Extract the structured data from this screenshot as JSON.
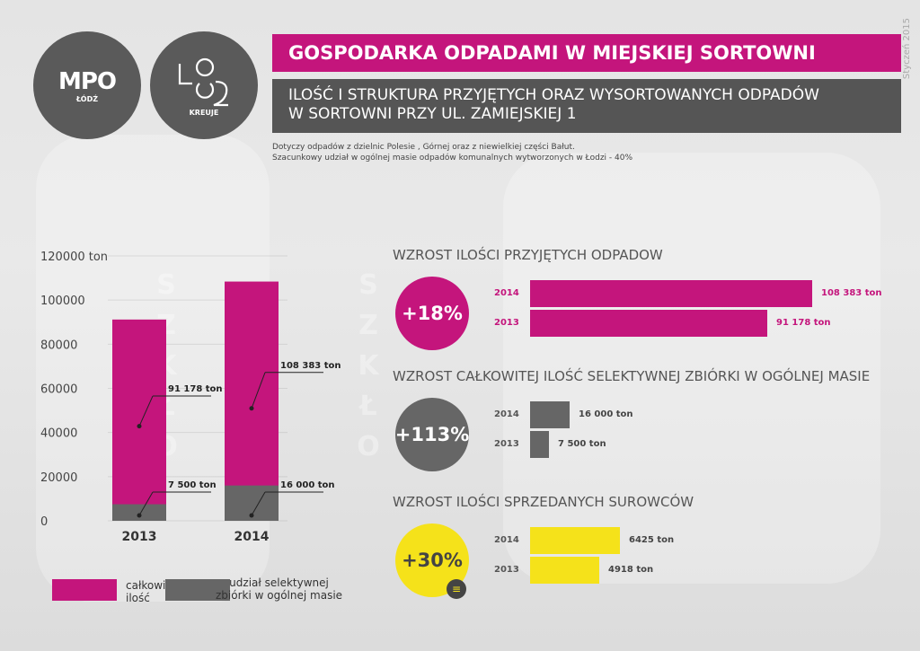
{
  "logos": {
    "mpo_text": "MPO",
    "mpo_sub": "ŁÓDŹ",
    "lodz_text": "ŁÓDŹ",
    "lodz_sub": "KREUJE"
  },
  "header": {
    "title": "GOSPODARKA ODPADAMI W MIEJSKIEJ SORTOWNI",
    "subtitle_line1": "ILOŚĆ I STRUKTURA PRZYJĘTYCH ORAZ WYSORTOWANYCH ODPADÓW",
    "subtitle_line2": "W SORTOWNI PRZY UL. ZAMIEJSKIEJ 1",
    "note_line1": "Dotyczy odpadów z dzielnic Polesie , Górnej oraz z  niewielkiej części Bałut.",
    "note_line2": "Szacunkowy udział w ogólnej masie odpadów komunalnych wytworzonych w Łodzi - 40%",
    "side_date": "Styczeń 2015"
  },
  "background_word": "SZKŁO",
  "colors": {
    "magenta": "#c4157c",
    "gray": "#666666",
    "yellow": "#f5e21a"
  },
  "chart_data": [
    {
      "type": "bar",
      "stacked": true,
      "categories": [
        "2013",
        "2014"
      ],
      "series": [
        {
          "name": "całkowita ilość",
          "values": [
            91178,
            108383
          ],
          "color": "#c4157c"
        },
        {
          "name": "udział selektywnej zbiórki w ogólnej masie",
          "values": [
            7500,
            16000
          ],
          "color": "#666666"
        }
      ],
      "labels_total": [
        "91 178 ton",
        "108 383 ton"
      ],
      "labels_selective": [
        "7 500 ton",
        "16 000 ton"
      ],
      "yticks": [
        "120000 ton",
        "100000",
        "80000",
        "60000",
        "40000",
        "20000",
        "0"
      ],
      "ytick_values": [
        120000,
        100000,
        80000,
        60000,
        40000,
        20000,
        0
      ],
      "ylim": [
        0,
        120000
      ],
      "legend": [
        {
          "label_line1": "całkowita",
          "label_line2": "ilość"
        },
        {
          "label_line1": "udział selektywnej",
          "label_line2": "zbiórki w ogólnej masie"
        }
      ]
    },
    {
      "type": "bar",
      "orientation": "horizontal",
      "title": "WZROST ILOŚCI PRZYJĘTYCH ODPADOW",
      "badge": "+18%",
      "categories": [
        "2014",
        "2013"
      ],
      "values": [
        108383,
        91178
      ],
      "value_labels": [
        "108 383 ton",
        "91 178 ton"
      ],
      "color": "#c4157c"
    },
    {
      "type": "bar",
      "orientation": "horizontal",
      "title": "WZROST CAŁKOWITEJ ILOŚĆ SELEKTYWNEJ ZBIÓRKI W OGÓLNEJ MASIE",
      "badge": "+113%",
      "categories": [
        "2014",
        "2013"
      ],
      "values": [
        16000,
        7500
      ],
      "value_labels": [
        "16 000 ton",
        "7 500 ton"
      ],
      "color": "#666666"
    },
    {
      "type": "bar",
      "orientation": "horizontal",
      "title": "WZROST ILOŚCI SPRZEDANYCH SUROWCÓW",
      "badge": "+30%",
      "categories": [
        "2014",
        "2013"
      ],
      "values": [
        6425,
        4918
      ],
      "value_labels": [
        "6425 ton",
        "4918 ton"
      ],
      "color": "#f5e21a"
    }
  ]
}
